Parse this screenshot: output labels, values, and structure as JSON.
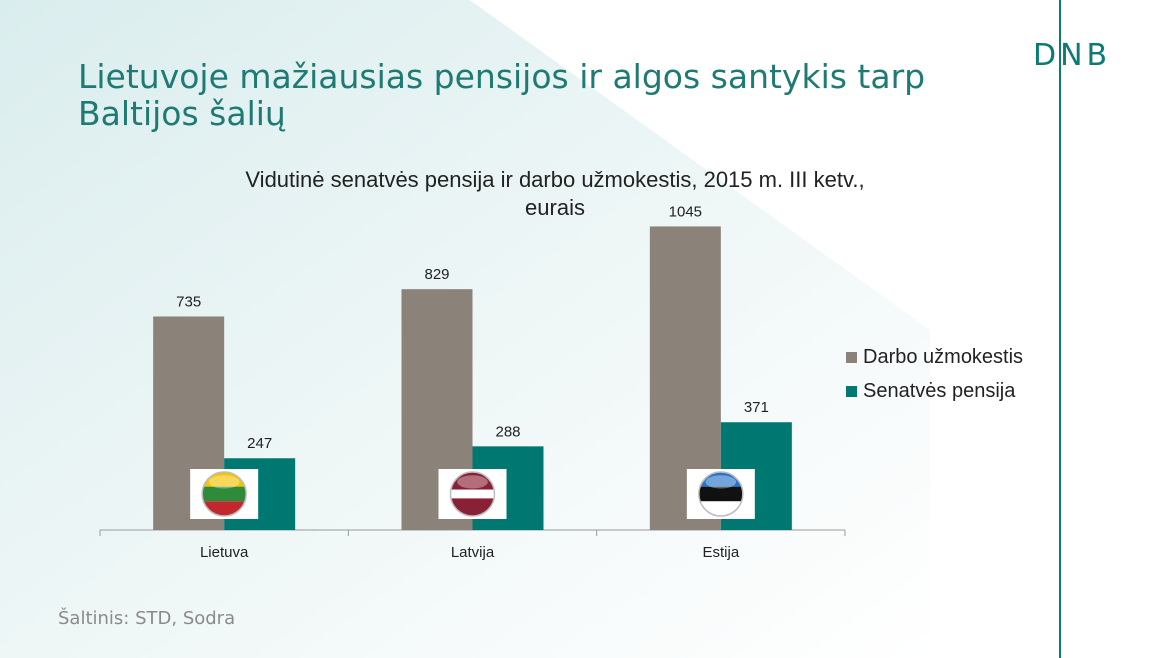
{
  "slide": {
    "title_line1": "Lietuvoje mažiausias pensijos ir algos santykis tarp",
    "title_line2": "Baltijos šalių",
    "logo": "DNB",
    "source": "Šaltinis: STD, Sodra"
  },
  "colors": {
    "accent": "#0b7b74",
    "salary": "#8b827a",
    "pension": "#007872"
  },
  "chart_data": {
    "type": "bar",
    "title_line1": "Vidutinė senatvės pensija ir darbo užmokestis, 2015 m. III ketv.,",
    "title_line2": "eurais",
    "categories": [
      "Lietuva",
      "Latvija",
      "Estija"
    ],
    "series": [
      {
        "name": "Darbo užmokestis",
        "values": [
          735,
          829,
          1045
        ]
      },
      {
        "name": "Senatvės pensija",
        "values": [
          247,
          288,
          371
        ]
      }
    ],
    "flags": [
      "lithuania-flag",
      "latvia-flag",
      "estonia-flag"
    ],
    "ylim": [
      0,
      1100
    ],
    "grid": false,
    "legend_position": "right"
  }
}
